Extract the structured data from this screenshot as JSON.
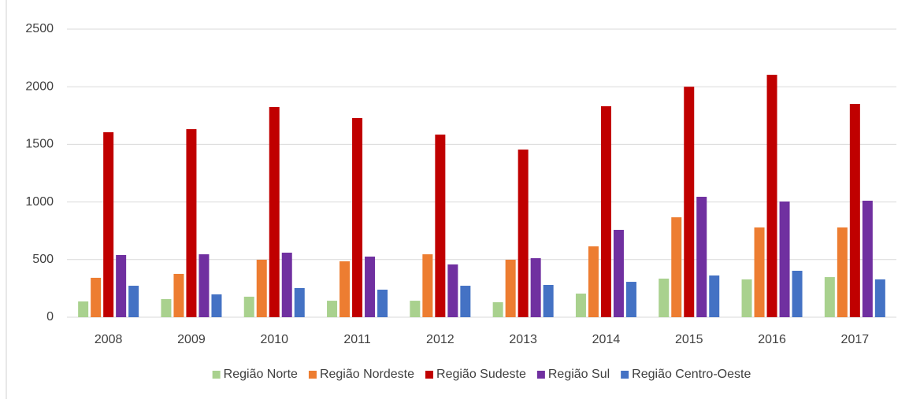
{
  "chart_data": {
    "type": "bar",
    "categories": [
      "2008",
      "2009",
      "2010",
      "2011",
      "2012",
      "2013",
      "2014",
      "2015",
      "2016",
      "2017"
    ],
    "series": [
      {
        "name": "Região Norte",
        "color": "#a9d18e",
        "values": [
          137,
          157,
          178,
          143,
          143,
          130,
          205,
          335,
          328,
          348
        ]
      },
      {
        "name": "Região Nordeste",
        "color": "#ed7d31",
        "values": [
          342,
          376,
          499,
          485,
          546,
          499,
          615,
          867,
          779,
          779
        ]
      },
      {
        "name": "Região Sudeste",
        "color": "#c00000",
        "values": [
          1605,
          1632,
          1824,
          1728,
          1585,
          1455,
          1831,
          2000,
          2104,
          1851
        ]
      },
      {
        "name": "Região Sul",
        "color": "#7030a0",
        "values": [
          540,
          546,
          560,
          526,
          458,
          512,
          758,
          1045,
          1004,
          1011
        ]
      },
      {
        "name": "Região Centro-Oeste",
        "color": "#4472c4",
        "values": [
          273,
          198,
          253,
          239,
          273,
          280,
          307,
          362,
          403,
          328
        ]
      }
    ],
    "ylim": [
      0,
      2500
    ],
    "yticks": [
      0,
      500,
      1000,
      1500,
      2000,
      2500
    ],
    "grid": true,
    "legend": "bottom"
  }
}
